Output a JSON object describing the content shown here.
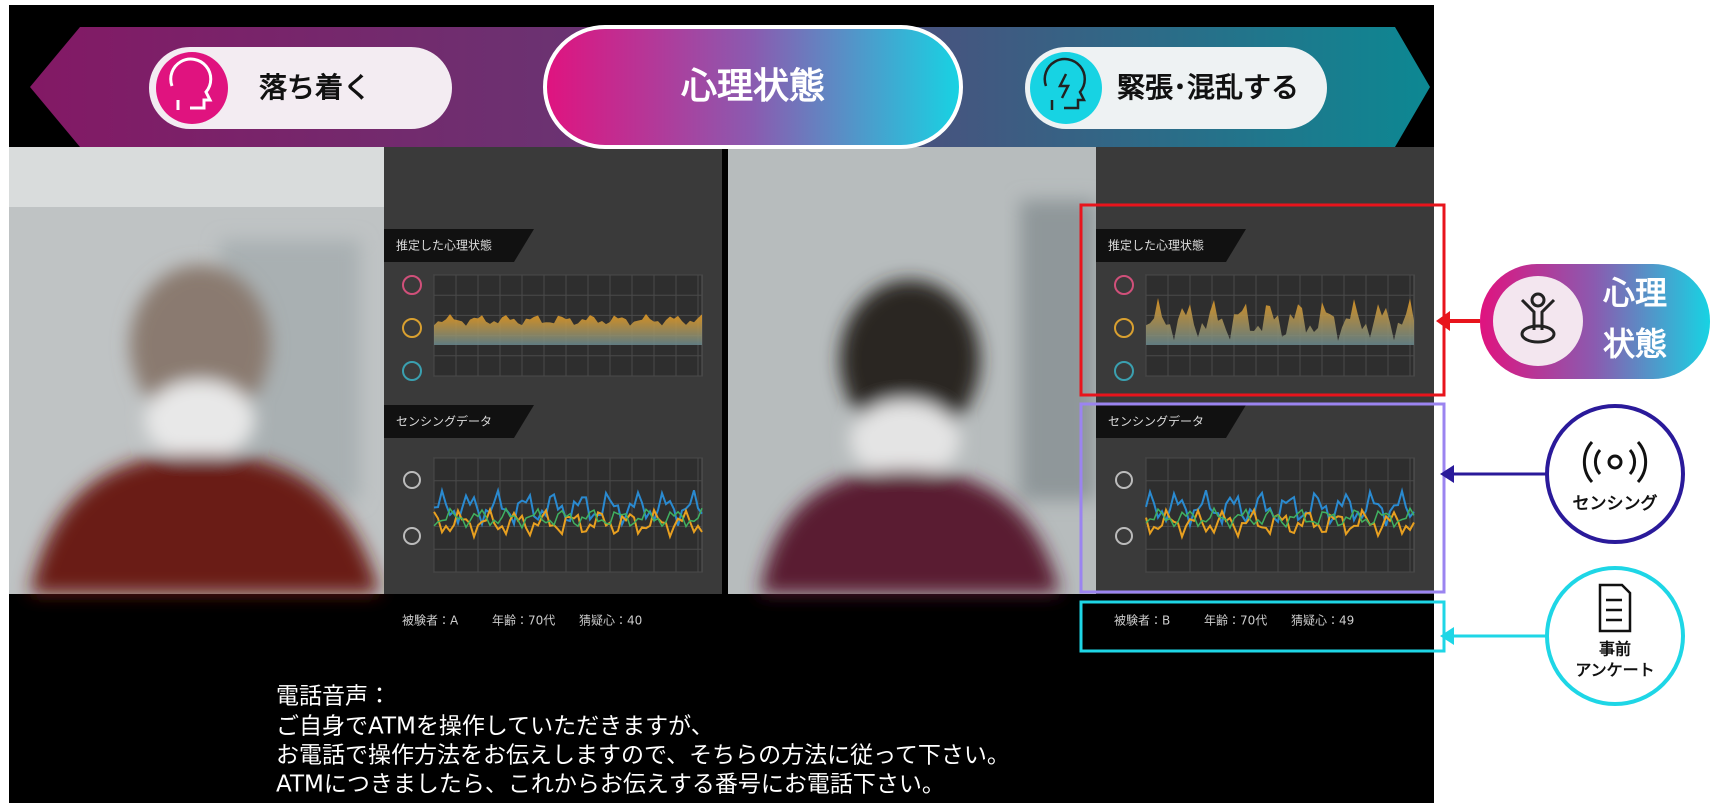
{
  "banner": {
    "left": "落ち着く",
    "center": "心理状態",
    "right": "緊張･混乱する"
  },
  "panels": [
    {
      "state_label": "推定した心理状態",
      "sensing_label": "センシングデータ",
      "subject": "被験者：A",
      "age": "年齢：70代",
      "suspicion": "猜疑心：40"
    },
    {
      "state_label": "推定した心理状態",
      "sensing_label": "センシングデータ",
      "subject": "被験者：B",
      "age": "年齢：70代",
      "suspicion": "猜疑心：49"
    }
  ],
  "subtitle": [
    "電話音声：",
    "ご自身でATMを操作していただきますが、",
    "お電話で操作方法をお伝えしますので、そちらの方法に従って下さい。",
    "ATMにつきましたら、これからお伝えする番号にお電話下さい。"
  ],
  "side_labels": {
    "psych": [
      "心理",
      "状態"
    ],
    "sensing": "センシング",
    "survey": [
      "事前",
      "アンケート"
    ]
  }
}
